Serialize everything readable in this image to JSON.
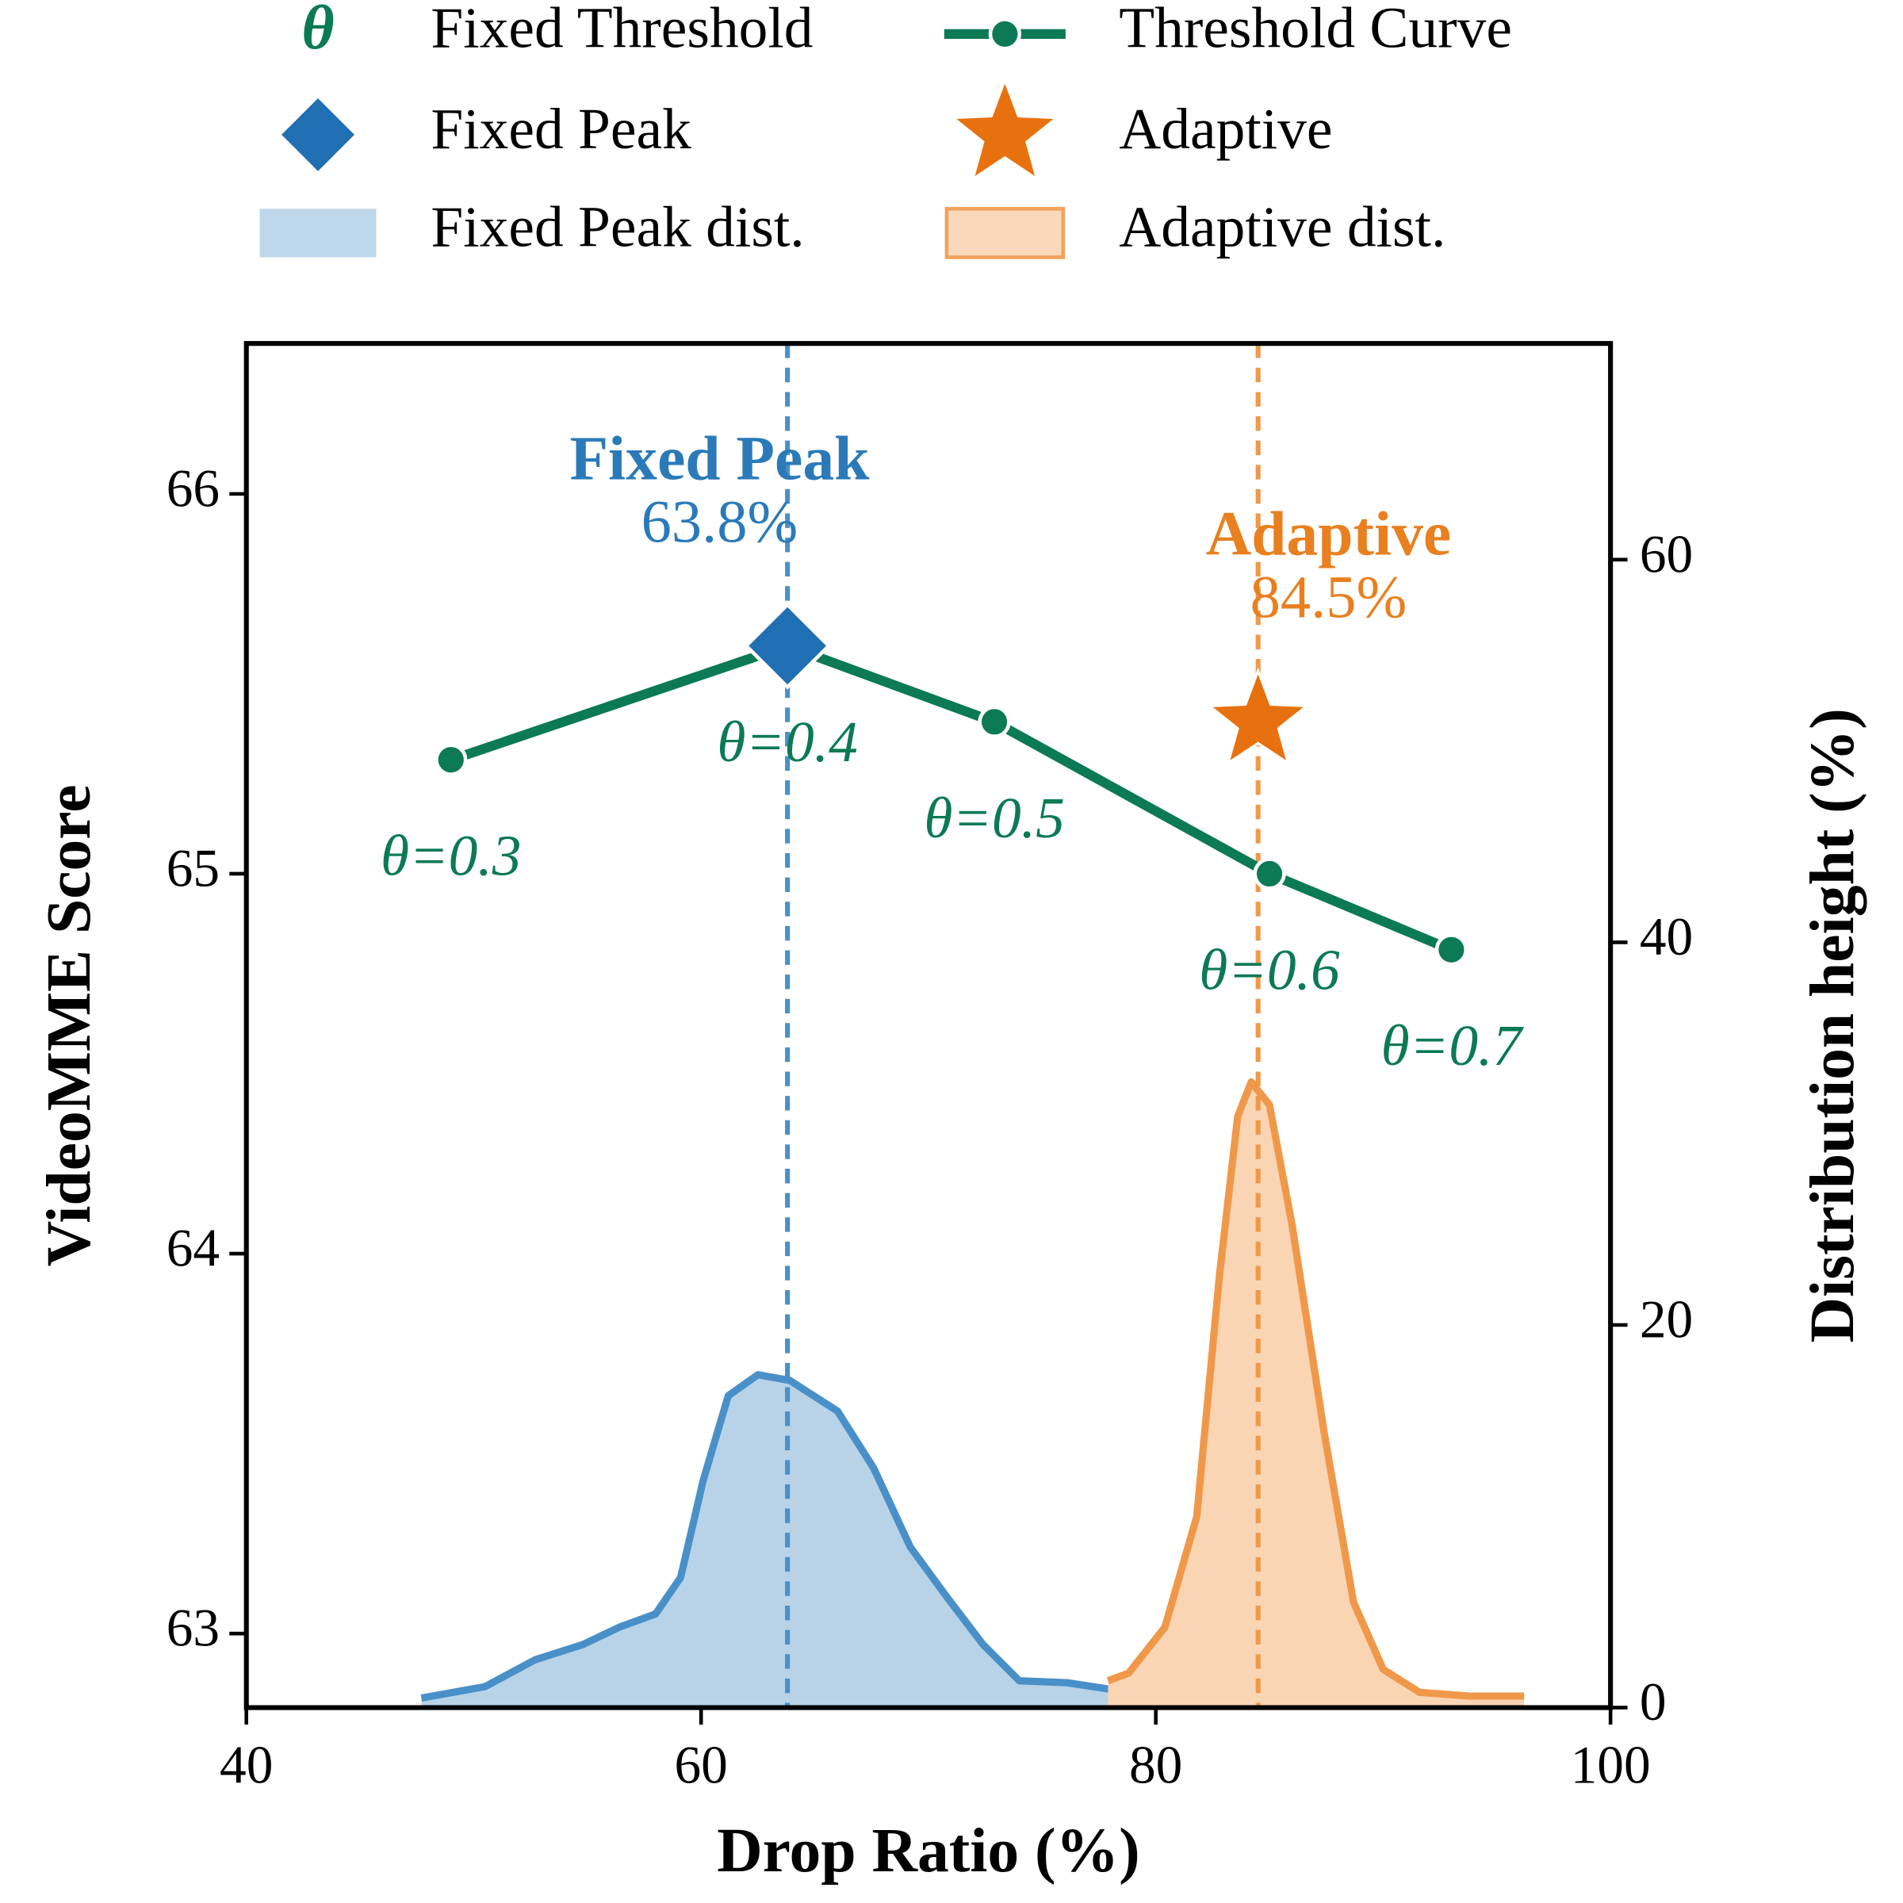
{
  "chart_data": {
    "type": "line",
    "xlabel": "Drop Ratio (%)",
    "ylabel": "VideoMME Score",
    "y2label": "Distribution height (%)",
    "xlim": [
      40,
      100
    ],
    "xticks": [
      40,
      60,
      80,
      100
    ],
    "ylim": [
      62.805,
      66.396
    ],
    "yticks": [
      63,
      64,
      65,
      66
    ],
    "y2lim": [
      0,
      71.3
    ],
    "y2ticks": [
      0,
      20,
      40,
      60
    ],
    "legend_symbol": {
      "name": "Fixed Threshold",
      "symbol": "θ",
      "color": "#0b7a55"
    },
    "series": [
      {
        "name": "Threshold Curve",
        "kind": "line",
        "color": "#0b7a55",
        "x": [
          49.0,
          63.8,
          72.9,
          85.0,
          93.0
        ],
        "values": [
          65.3,
          65.6,
          65.4,
          65.0,
          64.8
        ],
        "point_labels": [
          "θ=0.3",
          "θ=0.4",
          "θ=0.5",
          "θ=0.6",
          "θ=0.7"
        ]
      },
      {
        "name": "Fixed Peak",
        "kind": "diamond",
        "color": "#1f6fb2",
        "x": [
          63.8
        ],
        "values": [
          65.6
        ]
      },
      {
        "name": "Adaptive",
        "kind": "star",
        "color": "#e8710f",
        "x": [
          84.5
        ],
        "values": [
          65.4
        ]
      },
      {
        "name": "Fixed Peak dist.",
        "kind": "area",
        "axis": "y2",
        "color": "#4a90c8",
        "fill": "#b8d3e8",
        "x": [
          47.7,
          50.5,
          52.7,
          54.8,
          56.4,
          58.0,
          59.1,
          60.1,
          61.2,
          62.5,
          63.9,
          66.0,
          67.6,
          69.2,
          70.8,
          72.4,
          74.0,
          76.1,
          78.3,
          80.4,
          84.2
        ],
        "values": [
          0.5,
          1.1,
          2.5,
          3.3,
          4.2,
          4.9,
          6.8,
          11.9,
          16.3,
          17.4,
          17.1,
          15.5,
          12.5,
          8.4,
          5.8,
          3.3,
          1.4,
          1.3,
          0.9,
          0.6,
          0.5
        ]
      },
      {
        "name": "Adaptive dist.",
        "kind": "area",
        "axis": "y2",
        "color": "#f0984a",
        "fill": "#f9d5b3",
        "x": [
          77.9,
          78.8,
          80.4,
          81.8,
          82.8,
          83.6,
          84.2,
          85.0,
          86.0,
          87.4,
          88.7,
          90.0,
          91.6,
          93.8,
          96.2
        ],
        "values": [
          1.4,
          1.8,
          4.2,
          10.0,
          22.6,
          30.9,
          32.7,
          31.5,
          25.2,
          14.4,
          5.5,
          2.0,
          0.8,
          0.6,
          0.6
        ]
      }
    ],
    "annotations": [
      {
        "title": "Fixed Peak",
        "label": "63.8%",
        "x": 63.8,
        "color": "#2a7ab9",
        "line_color": "#4a90c8"
      },
      {
        "title": "Adaptive",
        "label": "84.5%",
        "x": 84.5,
        "color": "#e8801f",
        "line_color": "#f0984a"
      }
    ]
  }
}
